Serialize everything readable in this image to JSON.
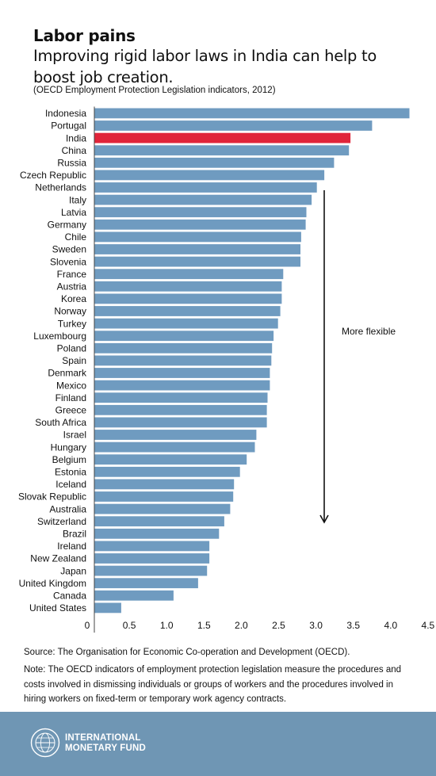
{
  "title": "Labor pains",
  "subtitle": "Improving rigid labor laws in India can help to boost job creation.",
  "units_note": "(OECD Employment Protection Legislation indicators, 2012)",
  "source": "Source: The Organisation for Economic Co-operation and Development (OECD).",
  "note": "Note: The OECD indicators of employment protection legislation measure the procedures and costs involved in dismissing individuals or groups of workers and the procedures involved in hiring workers on fixed-term or temporary work agency contracts.",
  "footer": {
    "logo_text": "INTERNATIONAL MONETARY FUND"
  },
  "colors": {
    "bar": "#6f9bc0",
    "highlight": "#e0243a",
    "footer": "#6f96b4"
  },
  "chart_data": {
    "type": "bar",
    "orientation": "horizontal",
    "categories": [
      "Indonesia",
      "Portugal",
      "India",
      "China",
      "Russia",
      "Czech Republic",
      "Netherlands",
      "Italy",
      "Latvia",
      "Germany",
      "Chile",
      "Sweden",
      "Slovenia",
      "France",
      "Austria",
      "Korea",
      "Norway",
      "Turkey",
      "Luxembourg",
      "Poland",
      "Spain",
      "Denmark",
      "Mexico",
      "Finland",
      "Greece",
      "South Africa",
      "Israel",
      "Hungary",
      "Belgium",
      "Estonia",
      "Iceland",
      "Slovak Republic",
      "Australia",
      "Switzerland",
      "Brazil",
      "Ireland",
      "New Zealand",
      "Japan",
      "United Kingdom",
      "Canada",
      "United States"
    ],
    "values": [
      4.22,
      3.72,
      3.43,
      3.41,
      3.21,
      3.08,
      2.98,
      2.91,
      2.84,
      2.83,
      2.77,
      2.76,
      2.76,
      2.53,
      2.51,
      2.51,
      2.49,
      2.46,
      2.4,
      2.38,
      2.37,
      2.35,
      2.35,
      2.32,
      2.31,
      2.31,
      2.17,
      2.15,
      2.04,
      1.95,
      1.87,
      1.86,
      1.82,
      1.74,
      1.67,
      1.54,
      1.54,
      1.51,
      1.39,
      1.06,
      0.36
    ],
    "highlight": "India",
    "xlim": [
      0,
      4.5
    ],
    "ticks": [
      "0",
      "0.5",
      "1.0",
      "1.5",
      "2.0",
      "2.5",
      "3.0",
      "3.5",
      "4.0",
      "4.5"
    ],
    "annotation": "More flexible",
    "xlabel": "",
    "ylabel": ""
  }
}
